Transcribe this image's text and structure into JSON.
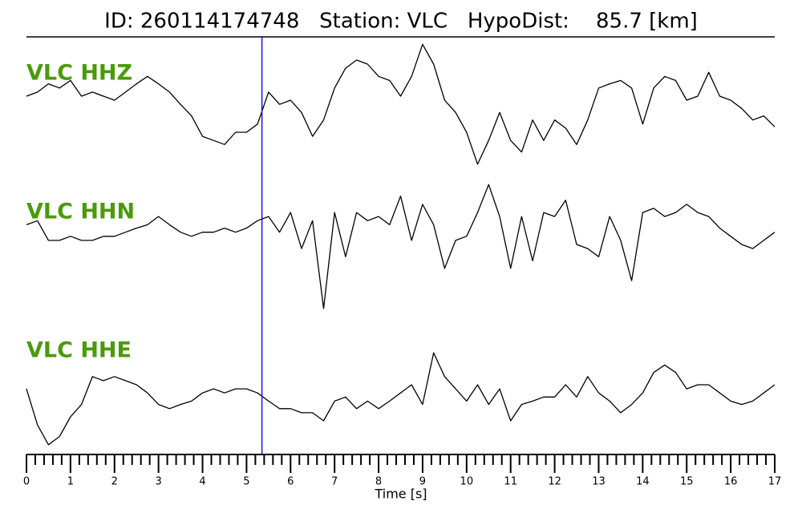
{
  "chart_data": {
    "type": "line",
    "title": "ID: 260114174748   Station: VLC   HypoDist:    85.7 [km]",
    "xlabel": "Time [s]",
    "label_color": "#4a9a0a",
    "x": [
      0,
      0.25,
      0.5,
      0.75,
      1,
      1.25,
      1.5,
      1.75,
      2,
      2.25,
      2.5,
      2.75,
      3,
      3.25,
      3.5,
      3.75,
      4,
      4.25,
      4.5,
      4.75,
      5,
      5.25,
      5.5,
      5.75,
      6,
      6.25,
      6.5,
      6.75,
      7,
      7.25,
      7.5,
      7.75,
      8,
      8.25,
      8.5,
      8.75,
      9,
      9.25,
      9.5,
      9.75,
      10,
      10.25,
      10.5,
      10.75,
      11,
      11.25,
      11.5,
      11.75,
      12,
      12.25,
      12.5,
      12.75,
      13,
      13.25,
      13.5,
      13.75,
      14,
      14.25,
      14.5,
      14.75,
      15,
      15.25,
      15.5,
      15.75,
      16,
      16.25,
      16.5,
      16.75,
      17
    ],
    "xlim": [
      0,
      17
    ],
    "xticks": [
      0,
      1,
      2,
      3,
      4,
      5,
      6,
      7,
      8,
      9,
      10,
      11,
      12,
      13,
      14,
      15,
      16,
      17
    ],
    "xminorticks": [
      0.2,
      0.4,
      0.6,
      0.8,
      1.2,
      1.4,
      1.6,
      1.8,
      2.2,
      2.4,
      2.6,
      2.8,
      3.2,
      3.4,
      3.6,
      3.8,
      4.2,
      4.4,
      4.6,
      4.8,
      5.2,
      5.4,
      5.6,
      5.8,
      6.2,
      6.4,
      6.6,
      6.8,
      7.2,
      7.4,
      7.6,
      7.8,
      8.2,
      8.4,
      8.6,
      8.8,
      9.2,
      9.4,
      9.6,
      9.8,
      10.2,
      10.4,
      10.6,
      10.8,
      11.2,
      11.4,
      11.6,
      11.8,
      12.2,
      12.4,
      12.6,
      12.8,
      13.2,
      13.4,
      13.6,
      13.8,
      14.2,
      14.4,
      14.6,
      14.8,
      15.2,
      15.4,
      15.6,
      15.8,
      16.2,
      16.4,
      16.6,
      16.8
    ],
    "pick": {
      "x": 5.35,
      "color": "#1a1acc"
    },
    "series": [
      {
        "name": "VLC HHZ",
        "color": "#000000",
        "ylim": [
          -1,
          1
        ],
        "values": [
          0.13,
          0.19,
          0.31,
          0.25,
          0.36,
          0.13,
          0.19,
          0.13,
          0.07,
          0.19,
          0.31,
          0.42,
          0.31,
          0.19,
          0.01,
          -0.16,
          -0.46,
          -0.52,
          -0.58,
          -0.4,
          -0.4,
          -0.28,
          0.19,
          0.01,
          0.07,
          -0.11,
          -0.46,
          -0.22,
          0.25,
          0.54,
          0.66,
          0.6,
          0.42,
          0.36,
          0.13,
          0.42,
          0.89,
          0.6,
          0.07,
          -0.11,
          -0.4,
          -0.87,
          -0.52,
          -0.11,
          -0.52,
          -0.69,
          -0.22,
          -0.52,
          -0.22,
          -0.34,
          -0.58,
          -0.22,
          0.25,
          0.31,
          0.36,
          0.25,
          -0.28,
          0.25,
          0.42,
          0.36,
          0.07,
          0.13,
          0.48,
          0.13,
          0.07,
          -0.05,
          -0.22,
          -0.16,
          -0.32
        ]
      },
      {
        "name": "VLC HHN",
        "color": "#000000",
        "ylim": [
          -1,
          1
        ],
        "values": [
          0.29,
          0.35,
          0.06,
          0.06,
          0.12,
          0.06,
          0.06,
          0.12,
          0.12,
          0.18,
          0.24,
          0.29,
          0.41,
          0.29,
          0.18,
          0.12,
          0.18,
          0.18,
          0.24,
          0.18,
          0.24,
          0.35,
          0.41,
          0.18,
          0.47,
          -0.06,
          0.35,
          -0.94,
          0.47,
          -0.18,
          0.47,
          0.35,
          0.41,
          0.29,
          0.71,
          0.06,
          0.59,
          0.29,
          -0.35,
          0.06,
          0.12,
          0.47,
          0.88,
          0.41,
          -0.35,
          0.41,
          -0.24,
          0.47,
          0.41,
          0.65,
          0,
          -0.06,
          -0.18,
          0.41,
          0.06,
          -0.53,
          0.47,
          0.53,
          0.41,
          0.47,
          0.59,
          0.47,
          0.41,
          0.24,
          0.12,
          0,
          -0.06,
          0.06,
          0.18
        ]
      },
      {
        "name": "VLC HHE",
        "color": "#000000",
        "ylim": [
          -1,
          1
        ],
        "values": [
          -0.06,
          -0.59,
          -0.88,
          -0.76,
          -0.47,
          -0.29,
          0.12,
          0.06,
          0.12,
          0.06,
          0,
          -0.12,
          -0.29,
          -0.35,
          -0.29,
          -0.24,
          -0.12,
          -0.06,
          -0.12,
          -0.06,
          -0.06,
          -0.12,
          -0.24,
          -0.35,
          -0.35,
          -0.41,
          -0.41,
          -0.53,
          -0.24,
          -0.18,
          -0.35,
          -0.24,
          -0.35,
          -0.24,
          -0.12,
          0,
          -0.29,
          0.47,
          0.12,
          -0.06,
          -0.24,
          0,
          -0.29,
          -0.06,
          -0.53,
          -0.29,
          -0.24,
          -0.18,
          -0.18,
          0,
          -0.18,
          0.12,
          -0.12,
          -0.24,
          -0.41,
          -0.29,
          -0.12,
          0.18,
          0.29,
          0.18,
          -0.06,
          0,
          0,
          -0.12,
          -0.24,
          -0.29,
          -0.24,
          -0.12,
          0
        ]
      }
    ]
  }
}
